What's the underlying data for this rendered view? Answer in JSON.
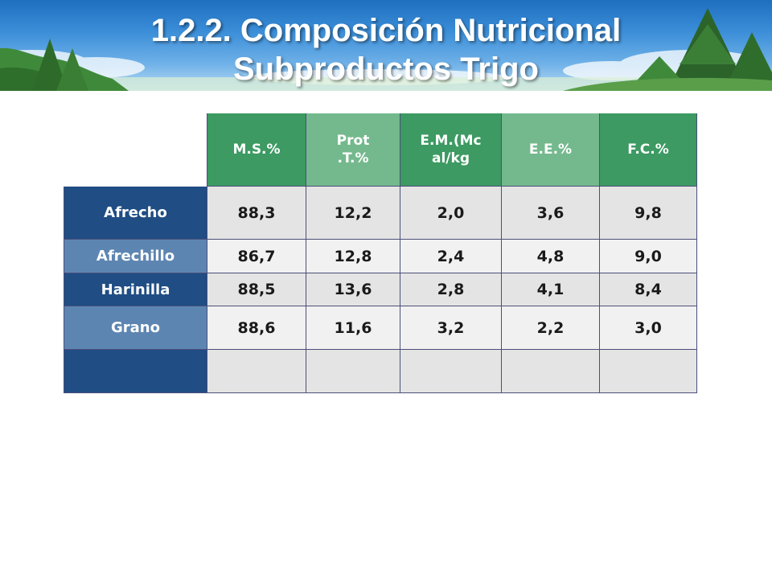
{
  "slide": {
    "title_line1": "1.2.2. Composición Nutricional",
    "title_line2": "Subproductos Trigo"
  },
  "table": {
    "headers": [
      "M.S.%",
      "Prot\n.T.%",
      "E.M.(Mc\nal/kg",
      "E.E.%",
      "F.C.%"
    ],
    "rows": [
      {
        "label": "Afrecho",
        "values": [
          "88,3",
          "12,2",
          "2,0",
          "3,6",
          "9,8"
        ]
      },
      {
        "label": "Afrechillo",
        "values": [
          "86,7",
          "12,8",
          "2,4",
          "4,8",
          "9,0"
        ]
      },
      {
        "label": "Harinilla",
        "values": [
          "88,5",
          "13,6",
          "2,8",
          "4,1",
          "8,4"
        ]
      },
      {
        "label": "Grano",
        "values": [
          "88,6",
          "11,6",
          "3,2",
          "2,2",
          "3,0"
        ]
      },
      {
        "label": "",
        "values": [
          "",
          "",
          "",
          "",
          ""
        ]
      }
    ]
  },
  "colors": {
    "header_dark": "#3c9a62",
    "header_light": "#74b98d",
    "row_header_dark": "#1f4d84",
    "row_header_light": "#5d85b2",
    "cell_dark": "#e4e4e4",
    "cell_light": "#f1f1f1"
  },
  "decorations": [
    "tree-icon",
    "cloud-icon"
  ]
}
